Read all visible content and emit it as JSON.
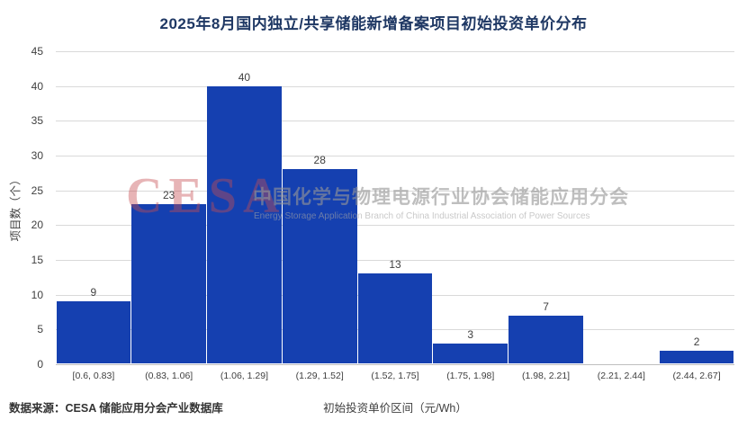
{
  "chart_data": {
    "type": "bar",
    "title": "2025年8月国内独立/共享储能新增备案项目初始投资单价分布",
    "categories": [
      "[0.6, 0.83]",
      "(0.83, 1.06]",
      "(1.06, 1.29]",
      "(1.29, 1.52]",
      "(1.52, 1.75]",
      "(1.75, 1.98]",
      "(1.98, 2.21]",
      "(2.21, 2.44]",
      "(2.44, 2.67]"
    ],
    "values": [
      9,
      23,
      40,
      28,
      13,
      3,
      7,
      0,
      2
    ],
    "xlabel": "初始投资单价区间（元/Wh）",
    "ylabel": "项目数（个）",
    "ylim": [
      0,
      45
    ],
    "yticks": [
      0,
      5,
      10,
      15,
      20,
      25,
      30,
      35,
      40,
      45
    ],
    "grid": true,
    "legend": "none",
    "bar_color": "#1540b0"
  },
  "watermark": {
    "cesa": "CESA",
    "line1": "中国化学与物理电源行业协会储能应用分会",
    "line2": "Energy Storage Application Branch of China Industrial Association of Power Sources"
  },
  "footer": {
    "source": "数据来源：CESA 储能应用分会产业数据库"
  },
  "colors": {
    "title": "#1f3864",
    "bar": "#1540b0",
    "grid": "#d9d9d9",
    "text": "#404040"
  }
}
